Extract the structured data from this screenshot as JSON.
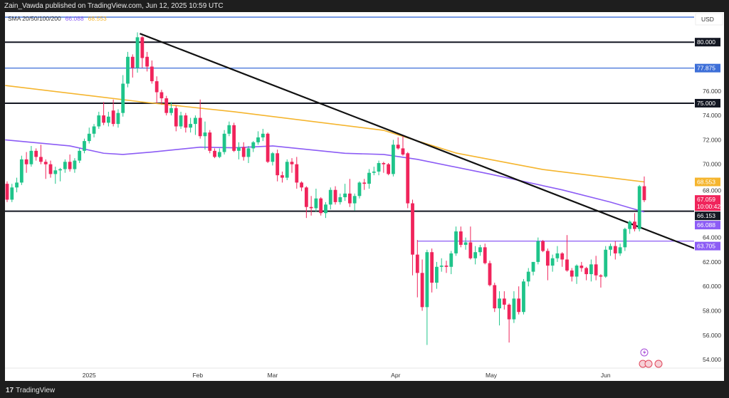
{
  "header": {
    "publisher_text": "Zain_Vawda published on TradingView.com, Jun 12, 2025 10:59 UTC"
  },
  "legend": {
    "indicator": "SMA 20/50/100/200",
    "sma100_value": "66.088",
    "sma200_value": "68.553"
  },
  "footer": {
    "brand": "TradingView",
    "logo_glyph": "17"
  },
  "colors": {
    "up": "#1fc48a",
    "down": "#f0245b",
    "sma100": "#8c5cf5",
    "sma200": "#f5b52e",
    "level_black": "#131722",
    "level_blue": "#3d6fd8",
    "level_purple": "#8c5cf5",
    "current_price": "#f0245b"
  },
  "chart_data": {
    "type": "candlestick",
    "currency": "USD",
    "ylim": [
      53,
      82.5
    ],
    "yticks": [
      "76.000",
      "74.000",
      "72.000",
      "70.000",
      "68.000",
      "64.000",
      "62.000",
      "60.000",
      "58.000",
      "56.000",
      "54.000"
    ],
    "ytick_values": [
      76,
      74,
      72,
      70,
      68,
      64,
      62,
      60,
      58,
      56,
      54
    ],
    "xticks": [
      {
        "label": "2025",
        "bar": 17
      },
      {
        "label": "Feb",
        "bar": 39.5
      },
      {
        "label": "Mar",
        "bar": 55
      },
      {
        "label": "Apr",
        "bar": 80.5
      },
      {
        "label": "May",
        "bar": 100.3
      },
      {
        "label": "Jun",
        "bar": 124
      }
    ],
    "candles_ohlc": [
      [
        68.4,
        68.6,
        66.9,
        67.1
      ],
      [
        67.1,
        68.4,
        66.9,
        68.1
      ],
      [
        68.1,
        68.9,
        67.7,
        68.5
      ],
      [
        68.5,
        70.7,
        68.3,
        70.4
      ],
      [
        70.4,
        71.0,
        69.3,
        70.0
      ],
      [
        70.0,
        71.5,
        69.8,
        71.1
      ],
      [
        71.1,
        71.3,
        70.3,
        70.6
      ],
      [
        70.6,
        71.6,
        70.0,
        70.2
      ],
      [
        70.2,
        70.4,
        68.8,
        70.0
      ],
      [
        70.0,
        70.3,
        68.9,
        69.2
      ],
      [
        69.2,
        69.8,
        68.4,
        69.5
      ],
      [
        69.5,
        69.7,
        68.6,
        69.6
      ],
      [
        69.6,
        70.4,
        69.3,
        70.2
      ],
      [
        70.2,
        70.8,
        69.4,
        69.6
      ],
      [
        69.6,
        70.5,
        69.3,
        70.3
      ],
      [
        70.3,
        71.3,
        70.1,
        71.1
      ],
      [
        71.1,
        72.1,
        70.9,
        71.9
      ],
      [
        71.9,
        73.0,
        71.7,
        72.5
      ],
      [
        72.5,
        73.3,
        72.2,
        73.1
      ],
      [
        73.1,
        74.3,
        72.9,
        74.0
      ],
      [
        74.0,
        75.1,
        73.2,
        73.4
      ],
      [
        73.4,
        74.3,
        73.1,
        73.9
      ],
      [
        74.4,
        75.3,
        73.1,
        73.3
      ],
      [
        73.3,
        74.5,
        73.0,
        74.2
      ],
      [
        74.2,
        77.3,
        73.9,
        76.6
      ],
      [
        76.6,
        79.2,
        76.3,
        78.8
      ],
      [
        78.8,
        79.0,
        77.1,
        77.9
      ],
      [
        77.9,
        80.8,
        77.5,
        80.4
      ],
      [
        80.4,
        80.5,
        77.9,
        78.7
      ],
      [
        78.8,
        79.2,
        77.6,
        78.0
      ],
      [
        78.0,
        78.5,
        76.6,
        76.8
      ],
      [
        76.8,
        77.2,
        75.0,
        75.9
      ],
      [
        75.9,
        76.1,
        74.9,
        75.4
      ],
      [
        75.4,
        75.6,
        74.0,
        74.2
      ],
      [
        74.2,
        75.1,
        74.0,
        74.6
      ],
      [
        74.6,
        74.8,
        72.7,
        73.1
      ],
      [
        73.1,
        74.3,
        72.9,
        74.0
      ],
      [
        74.0,
        74.2,
        72.6,
        73.0
      ],
      [
        73.0,
        73.8,
        72.6,
        73.3
      ],
      [
        73.3,
        74.0,
        72.4,
        73.8
      ],
      [
        73.8,
        75.3,
        72.1,
        72.3
      ],
      [
        72.3,
        73.5,
        71.2,
        72.6
      ],
      [
        72.6,
        72.8,
        70.9,
        71.1
      ],
      [
        71.1,
        71.3,
        70.5,
        70.6
      ],
      [
        70.6,
        71.3,
        70.5,
        71.0
      ],
      [
        71.0,
        72.8,
        70.8,
        72.5
      ],
      [
        72.5,
        73.5,
        72.3,
        73.2
      ],
      [
        73.2,
        73.4,
        71.0,
        71.1
      ],
      [
        71.1,
        71.8,
        70.4,
        71.4
      ],
      [
        71.4,
        71.8,
        70.3,
        70.6
      ],
      [
        70.6,
        71.5,
        70.1,
        71.3
      ],
      [
        71.3,
        71.9,
        71.0,
        71.8
      ],
      [
        71.8,
        72.7,
        71.6,
        72.2
      ],
      [
        72.2,
        72.9,
        71.9,
        72.5
      ],
      [
        72.5,
        72.6,
        70.1,
        70.2
      ],
      [
        70.2,
        71.0,
        69.9,
        70.9
      ],
      [
        70.9,
        71.2,
        68.6,
        69.1
      ],
      [
        69.1,
        69.4,
        68.5,
        68.9
      ],
      [
        68.9,
        70.4,
        68.7,
        70.2
      ],
      [
        70.2,
        70.5,
        69.3,
        70.0
      ],
      [
        70.0,
        70.6,
        68.0,
        68.5
      ],
      [
        68.5,
        68.6,
        67.8,
        68.1
      ],
      [
        68.1,
        68.2,
        65.6,
        66.5
      ],
      [
        66.5,
        67.4,
        65.8,
        66.4
      ],
      [
        66.4,
        68.0,
        66.1,
        67.2
      ],
      [
        67.2,
        67.3,
        65.8,
        66.0
      ],
      [
        66.0,
        66.9,
        65.6,
        66.7
      ],
      [
        66.7,
        68.1,
        66.3,
        67.9
      ],
      [
        67.9,
        68.2,
        66.7,
        66.9
      ],
      [
        66.9,
        67.6,
        66.7,
        67.3
      ],
      [
        67.3,
        68.4,
        67.0,
        67.6
      ],
      [
        67.6,
        68.8,
        66.5,
        66.8
      ],
      [
        66.8,
        67.6,
        66.2,
        67.4
      ],
      [
        67.4,
        68.6,
        67.2,
        68.5
      ],
      [
        68.5,
        68.8,
        67.9,
        68.4
      ],
      [
        68.4,
        69.6,
        68.0,
        69.3
      ],
      [
        69.3,
        69.8,
        69.1,
        69.4
      ],
      [
        69.4,
        70.3,
        69.1,
        70.1
      ],
      [
        70.1,
        70.2,
        69.3,
        70.0
      ],
      [
        70.0,
        70.1,
        69.1,
        69.2
      ],
      [
        69.2,
        72.0,
        69.0,
        71.6
      ],
      [
        71.6,
        72.2,
        71.2,
        71.3
      ],
      [
        71.3,
        72.3,
        70.7,
        70.8
      ],
      [
        70.9,
        71.0,
        66.4,
        66.8
      ],
      [
        66.8,
        67.1,
        60.9,
        62.6
      ],
      [
        62.6,
        63.8,
        59.1,
        61.1
      ],
      [
        61.1,
        62.2,
        58.0,
        58.3
      ],
      [
        58.3,
        63.0,
        55.2,
        62.8
      ],
      [
        62.8,
        63.1,
        59.5,
        60.3
      ],
      [
        60.3,
        62.0,
        59.8,
        61.6
      ],
      [
        61.6,
        62.3,
        61.2,
        61.7
      ],
      [
        61.7,
        62.1,
        61.1,
        61.6
      ],
      [
        61.6,
        62.9,
        61.0,
        62.7
      ],
      [
        62.7,
        64.9,
        62.5,
        64.5
      ],
      [
        64.5,
        64.9,
        63.2,
        63.4
      ],
      [
        63.4,
        64.0,
        63.0,
        63.6
      ],
      [
        63.6,
        64.9,
        62.2,
        62.3
      ],
      [
        62.3,
        63.3,
        61.8,
        62.8
      ],
      [
        62.8,
        63.4,
        62.5,
        63.2
      ],
      [
        63.2,
        63.5,
        61.8,
        61.9
      ],
      [
        61.9,
        62.1,
        60.0,
        60.1
      ],
      [
        60.1,
        60.3,
        57.9,
        58.2
      ],
      [
        58.2,
        59.6,
        56.8,
        59.0
      ],
      [
        59.0,
        59.6,
        58.1,
        58.5
      ],
      [
        58.5,
        58.6,
        55.4,
        57.3
      ],
      [
        57.3,
        59.6,
        57.0,
        59.0
      ],
      [
        59.0,
        60.0,
        57.7,
        57.9
      ],
      [
        57.9,
        60.6,
        57.7,
        60.4
      ],
      [
        60.4,
        61.5,
        60.0,
        61.2
      ],
      [
        61.2,
        62.0,
        60.9,
        62.0
      ],
      [
        62.0,
        64.0,
        61.8,
        63.7
      ],
      [
        63.7,
        63.8,
        62.8,
        62.9
      ],
      [
        62.9,
        63.1,
        60.5,
        61.7
      ],
      [
        61.7,
        62.6,
        61.2,
        62.3
      ],
      [
        62.3,
        63.3,
        62.0,
        62.7
      ],
      [
        62.7,
        62.8,
        61.6,
        62.2
      ],
      [
        62.2,
        64.2,
        61.2,
        61.3
      ],
      [
        61.3,
        61.5,
        60.4,
        60.8
      ],
      [
        60.8,
        61.8,
        60.2,
        61.7
      ],
      [
        61.7,
        62.0,
        61.2,
        61.5
      ],
      [
        61.5,
        61.6,
        60.5,
        61.0
      ],
      [
        61.0,
        62.2,
        60.4,
        61.8
      ],
      [
        61.8,
        62.5,
        60.5,
        60.9
      ],
      [
        60.9,
        61.0,
        59.9,
        60.8
      ],
      [
        60.8,
        63.3,
        60.7,
        63.0
      ],
      [
        63.0,
        63.5,
        62.5,
        63.3
      ],
      [
        63.3,
        63.7,
        62.2,
        62.7
      ],
      [
        62.7,
        63.5,
        62.5,
        63.2
      ],
      [
        63.2,
        64.8,
        62.9,
        64.7
      ],
      [
        64.7,
        65.4,
        64.3,
        65.3
      ],
      [
        65.3,
        66.0,
        64.5,
        64.7
      ],
      [
        64.7,
        68.3,
        64.5,
        68.2
      ],
      [
        68.2,
        69.0,
        66.9,
        67.059
      ]
    ],
    "sma_series": [
      {
        "name": "SMA 200",
        "color_key": "sma200",
        "points": [
          [
            -0.4,
            76.45
          ],
          [
            28,
            75.1
          ],
          [
            47,
            74.3
          ],
          [
            78,
            72.78
          ],
          [
            93,
            70.92
          ],
          [
            111,
            69.57
          ],
          [
            132,
            68.553
          ]
        ]
      },
      {
        "name": "SMA 100",
        "color_key": "sma100",
        "points": [
          [
            -0.4,
            72.0
          ],
          [
            13,
            71.5
          ],
          [
            20,
            70.9
          ],
          [
            24,
            70.8
          ],
          [
            30,
            71.0
          ],
          [
            40,
            71.4
          ],
          [
            47,
            71.35
          ],
          [
            55,
            71.5
          ],
          [
            70,
            70.9
          ],
          [
            78,
            70.8
          ],
          [
            85,
            70.4
          ],
          [
            100,
            69.2
          ],
          [
            115,
            67.9
          ],
          [
            125,
            66.9
          ],
          [
            132,
            66.088
          ]
        ]
      }
    ],
    "horizontal_levels": [
      {
        "price": 82.05,
        "color_key": "level_blue",
        "label": ""
      },
      {
        "price": 80.0,
        "color_key": "level_black",
        "label": "80.000"
      },
      {
        "price": 77.875,
        "color_key": "level_blue",
        "label": "77.875"
      },
      {
        "price": 75.0,
        "color_key": "level_black",
        "label": "75.000"
      },
      {
        "price": 66.153,
        "color_key": "level_black",
        "label": "66.153"
      },
      {
        "price": 63.705,
        "color_key": "level_purple",
        "label": "63.705",
        "from_bar": 85
      }
    ],
    "trendline": {
      "from": [
        27.5,
        80.7
      ],
      "through": [
        132,
        64.7
      ],
      "extend": "right"
    },
    "price_labels": [
      {
        "label": "68.553",
        "price": 68.553,
        "color_key": "sma200"
      },
      {
        "label": "67.059",
        "sub": "10:00:42",
        "price": 67.059,
        "color_key": "current_price"
      },
      {
        "label": "66.088",
        "price": 66.088,
        "color_key": "sma100"
      }
    ],
    "events": [
      "lightning-icon",
      "us-flag-icon",
      "us-flag-icon",
      "us-flag-icon"
    ]
  }
}
